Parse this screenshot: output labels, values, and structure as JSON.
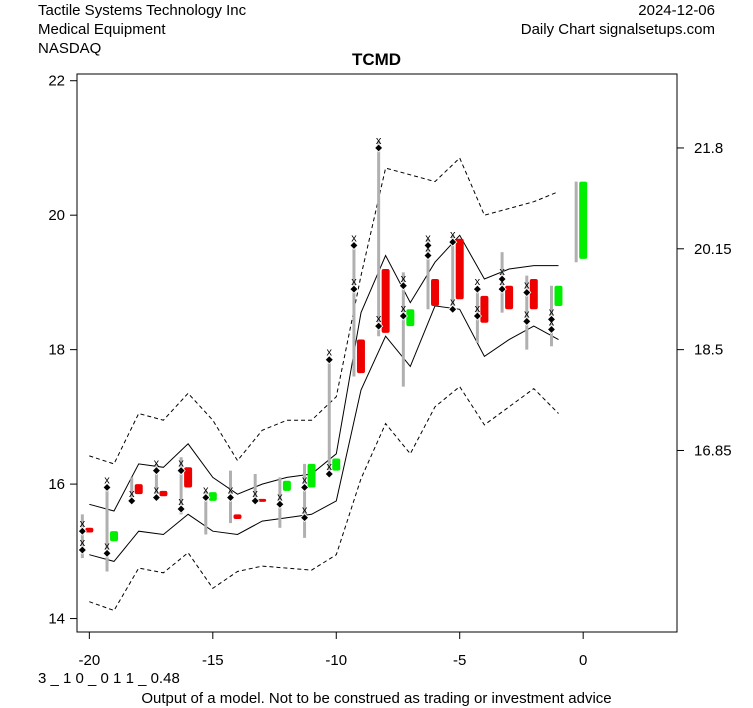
{
  "header": {
    "company": "Tactile Systems Technology Inc",
    "sector": "Medical Equipment",
    "exchange": "NASDAQ",
    "date": "2024-12-06",
    "source": "Daily Chart signalsetups.com"
  },
  "footer": {
    "model_code": "3 _ 1 0 _ 0 1 1 _ 0.48",
    "disclaimer": "Output of a model. Not to be construed as trading or investment advice"
  },
  "colors": {
    "up": "#00ee00",
    "down": "#ee0000",
    "range": "#b0b0b0",
    "band": "#000000"
  },
  "chart_data": {
    "type": "candlestick",
    "title": "TCMD",
    "xlim": [
      -20.5,
      3.8
    ],
    "ylim": [
      13.8,
      22.1
    ],
    "x_ticks": [
      -20,
      -15,
      -10,
      -5,
      0
    ],
    "x_tick_labels": [
      "-20",
      "-15",
      "-10",
      "-5",
      "0"
    ],
    "y_left_ticks": [
      14,
      16,
      18,
      20,
      22
    ],
    "y_left_labels": [
      "14",
      "16",
      "18",
      "20",
      "22"
    ],
    "y_right_ticks": [
      16.5,
      18.0,
      19.5,
      21.0
    ],
    "y_right_labels": [
      "16.85",
      "18.5",
      "20.15",
      "21.8"
    ],
    "candles": [
      {
        "x": -20,
        "open": 15.35,
        "close": 15.28,
        "low": 14.9,
        "high": 15.55,
        "markers": [
          15.3,
          15.02
        ]
      },
      {
        "x": -19,
        "open": 15.15,
        "close": 15.3,
        "low": 14.7,
        "high": 15.95,
        "markers": [
          15.95,
          14.97
        ]
      },
      {
        "x": -18,
        "open": 16.0,
        "close": 15.85,
        "low": 15.75,
        "high": 16.1,
        "markers": [
          15.75
        ]
      },
      {
        "x": -17,
        "open": 15.9,
        "close": 15.82,
        "low": 15.78,
        "high": 16.3,
        "markers": [
          16.2,
          15.8
        ]
      },
      {
        "x": -16,
        "open": 16.25,
        "close": 15.95,
        "low": 15.55,
        "high": 16.4,
        "markers": [
          16.2,
          15.63
        ]
      },
      {
        "x": -15,
        "open": 15.75,
        "close": 15.88,
        "low": 15.25,
        "high": 15.9,
        "markers": [
          15.8
        ]
      },
      {
        "x": -14,
        "open": 15.55,
        "close": 15.48,
        "low": 15.42,
        "high": 16.2,
        "markers": [
          15.8
        ]
      },
      {
        "x": -13,
        "open": 15.78,
        "close": 15.74,
        "low": 15.7,
        "high": 16.15,
        "markers": [
          15.75
        ]
      },
      {
        "x": -12,
        "open": 15.9,
        "close": 16.05,
        "low": 15.35,
        "high": 16.1,
        "markers": [
          15.7
        ]
      },
      {
        "x": -11,
        "open": 15.95,
        "close": 16.3,
        "low": 15.2,
        "high": 16.3,
        "markers": [
          15.95,
          15.5
        ]
      },
      {
        "x": -10,
        "open": 16.2,
        "close": 16.38,
        "low": 16.1,
        "high": 17.9,
        "markers": [
          17.85,
          16.15
        ]
      },
      {
        "x": -9,
        "open": 18.15,
        "close": 17.65,
        "low": 17.6,
        "high": 19.6,
        "markers": [
          19.55,
          18.9
        ]
      },
      {
        "x": -8,
        "open": 19.2,
        "close": 18.25,
        "low": 18.2,
        "high": 21.1,
        "markers": [
          21.0,
          18.35
        ]
      },
      {
        "x": -7,
        "open": 18.35,
        "close": 18.6,
        "low": 17.45,
        "high": 19.15,
        "markers": [
          18.95,
          18.5
        ]
      },
      {
        "x": -6,
        "open": 19.05,
        "close": 18.65,
        "low": 18.6,
        "high": 19.65,
        "markers": [
          19.55,
          19.4
        ]
      },
      {
        "x": -5,
        "open": 19.65,
        "close": 18.75,
        "low": 18.6,
        "high": 19.7,
        "markers": [
          19.6,
          18.6
        ]
      },
      {
        "x": -4,
        "open": 18.8,
        "close": 18.4,
        "low": 18.1,
        "high": 18.95,
        "markers": [
          18.9,
          18.5
        ]
      },
      {
        "x": -3,
        "open": 18.95,
        "close": 18.6,
        "low": 18.55,
        "high": 19.45,
        "markers": [
          19.05,
          18.9
        ]
      },
      {
        "x": -2,
        "open": 19.05,
        "close": 18.6,
        "low": 18.0,
        "high": 19.1,
        "markers": [
          18.85,
          18.42
        ]
      },
      {
        "x": -1,
        "open": 18.65,
        "close": 18.95,
        "low": 18.05,
        "high": 18.95,
        "markers": [
          18.45,
          18.3
        ]
      },
      {
        "x": 0,
        "open": 19.35,
        "close": 20.5,
        "low": 19.3,
        "high": 20.5,
        "markers": []
      }
    ],
    "bands": {
      "x": [
        -20,
        -19,
        -18,
        -17,
        -16,
        -15,
        -14,
        -13,
        -12,
        -11,
        -10,
        -9,
        -8,
        -7,
        -6,
        -5,
        -4,
        -3,
        -2,
        -1
      ],
      "upper_outer": [
        16.42,
        16.3,
        17.05,
        16.95,
        17.35,
        16.95,
        16.35,
        16.8,
        16.95,
        16.95,
        17.3,
        19.1,
        20.7,
        20.6,
        20.5,
        20.85,
        20.0,
        20.1,
        20.2,
        20.35
      ],
      "upper_inner": [
        15.7,
        15.6,
        16.3,
        16.25,
        16.6,
        16.1,
        15.85,
        16.0,
        16.1,
        16.15,
        16.45,
        18.55,
        19.4,
        18.7,
        19.3,
        19.7,
        19.05,
        19.2,
        19.25,
        19.25
      ],
      "lower_inner": [
        14.95,
        14.85,
        15.3,
        15.25,
        15.55,
        15.3,
        15.25,
        15.45,
        15.5,
        15.55,
        15.75,
        17.4,
        18.2,
        17.75,
        18.65,
        18.6,
        17.9,
        18.15,
        18.35,
        18.15
      ],
      "lower_outer": [
        14.25,
        14.12,
        14.75,
        14.68,
        14.98,
        14.45,
        14.7,
        14.78,
        14.75,
        14.72,
        14.95,
        16.08,
        16.9,
        16.45,
        17.15,
        17.45,
        16.88,
        17.15,
        17.42,
        17.05
      ]
    }
  }
}
